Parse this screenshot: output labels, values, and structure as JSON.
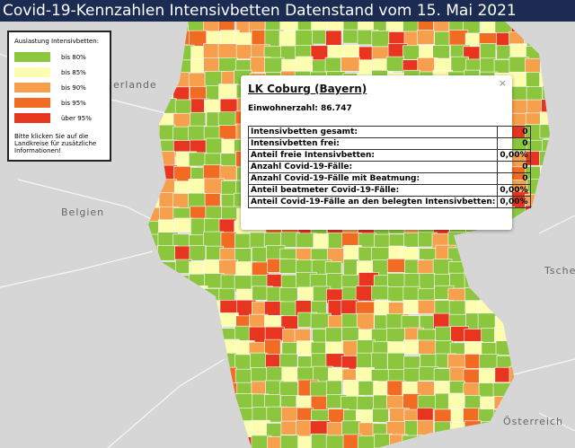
{
  "header": {
    "title": "Covid-19-Kennzahlen Intensivbetten Datenstand vom 15. Mai 2021"
  },
  "legend": {
    "title": "Auslastung Intensivbetten:",
    "items": [
      {
        "label": "bis 80%",
        "color": "#8cc63f"
      },
      {
        "label": "bis 85%",
        "color": "#fdfdb0"
      },
      {
        "label": "bis 90%",
        "color": "#f6a04d"
      },
      {
        "label": "bis 95%",
        "color": "#f26b22"
      },
      {
        "label": "über 95%",
        "color": "#e8351f"
      }
    ],
    "note": [
      "Bitte klicken Sie auf die",
      "Landkreise für zusätzliche",
      "Informationen!"
    ]
  },
  "map_labels": [
    "derlande",
    "Belgien",
    "Tsche",
    "Österreich"
  ],
  "popup": {
    "title": "LK Coburg (Bayern)",
    "population": "Einwohnerzahl: 86.747",
    "close": "×",
    "table": {
      "rows": [
        [
          "Intensivbetten gesamt:",
          0
        ],
        [
          "Intensivbetten frei:",
          0
        ],
        [
          "Anteil freie Intensivbetten:",
          "0,00%"
        ],
        [
          "Anzahl Covid-19-Fälle:",
          0
        ],
        [
          "Anzahl Covid-19-Fälle mit Beatmung:",
          0
        ],
        [
          "Anteil beatmeter Covid-19-Fälle:",
          "0,00%"
        ],
        [
          "Anteil Covid-19-Fälle an den belegten Intensivbetten:",
          "0,00%"
        ]
      ]
    }
  }
}
